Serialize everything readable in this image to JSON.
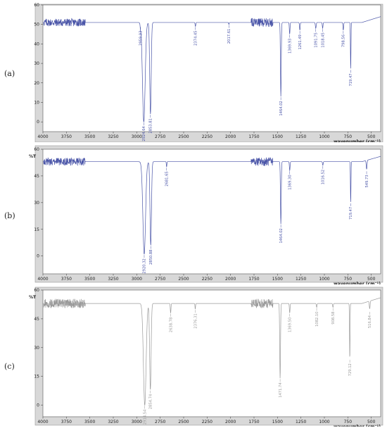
{
  "panel_labels": [
    "(a)",
    "(b)",
    "(c)"
  ],
  "chart_data": [
    {
      "type": "line",
      "panel": "(a)",
      "xlabel": "wavenumber (cm⁻¹)",
      "ylabel": "",
      "xlim": [
        4000,
        400
      ],
      "ylim": [
        -5,
        60
      ],
      "x_ticks": [
        4000,
        3750,
        3500,
        3250,
        3000,
        2750,
        2500,
        2250,
        2000,
        1750,
        1500,
        1250,
        1000,
        750,
        500
      ],
      "y_ticks": [
        0,
        10,
        20,
        30,
        40,
        50,
        60
      ],
      "grid": false,
      "color": "#4a55a8",
      "baseline": 51,
      "noise_regions": [
        [
          3990,
          3550,
          2.0
        ],
        [
          1780,
          1550,
          2.2
        ]
      ],
      "peaks": [
        {
          "x": 2924.64,
          "y": 0,
          "w": 40,
          "label": "2924.64"
        },
        {
          "x": 2853.81,
          "y": 4,
          "w": 22,
          "label": "2853.81"
        },
        {
          "x": 2959.93,
          "y": 49,
          "w": 10,
          "label": "2959.93"
        },
        {
          "x": 2374.45,
          "y": 49,
          "w": 10,
          "label": "2374.45"
        },
        {
          "x": 2017.61,
          "y": 50,
          "w": 8,
          "label": "2017.61"
        },
        {
          "x": 1464.02,
          "y": 13,
          "w": 12,
          "label": "1464.02"
        },
        {
          "x": 1369.93,
          "y": 45,
          "w": 10,
          "label": "1369.93"
        },
        {
          "x": 1261.49,
          "y": 47,
          "w": 10,
          "label": "1261.49"
        },
        {
          "x": 1091.75,
          "y": 48,
          "w": 12,
          "label": "1091.75"
        },
        {
          "x": 1018.45,
          "y": 48,
          "w": 10,
          "label": "1018.45"
        },
        {
          "x": 798.56,
          "y": 47,
          "w": 10,
          "label": "798.56"
        },
        {
          "x": 719.47,
          "y": 27,
          "w": 8,
          "label": "719.47"
        }
      ]
    },
    {
      "type": "line",
      "panel": "(b)",
      "xlabel": "wavenumber (cm⁻¹)",
      "ylabel": "%T",
      "xlim": [
        4000,
        400
      ],
      "ylim": [
        -10,
        60
      ],
      "x_ticks": [
        4000,
        3750,
        3500,
        3250,
        3000,
        2750,
        2500,
        2250,
        2000,
        1750,
        1500,
        1250,
        1000,
        750,
        500
      ],
      "y_ticks": [
        0,
        15,
        30,
        45,
        60
      ],
      "grid": false,
      "color": "#4a55a8",
      "baseline": 53,
      "noise_regions": [
        [
          3990,
          3550,
          2.2
        ],
        [
          1780,
          1550,
          2.4
        ]
      ],
      "peaks": [
        {
          "x": 2920.32,
          "y": 1,
          "w": 40,
          "label": "2920.32"
        },
        {
          "x": 2850.88,
          "y": 6,
          "w": 22,
          "label": "2850.88"
        },
        {
          "x": 2681.65,
          "y": 50,
          "w": 8,
          "label": "2681.65"
        },
        {
          "x": 1464.02,
          "y": 18,
          "w": 12,
          "label": "1464.02"
        },
        {
          "x": 1369.3,
          "y": 48,
          "w": 10,
          "label": "1369.30"
        },
        {
          "x": 1016.52,
          "y": 51,
          "w": 10,
          "label": "1016.52"
        },
        {
          "x": 719.47,
          "y": 30,
          "w": 8,
          "label": "719.47"
        },
        {
          "x": 549.73,
          "y": 48,
          "w": 12,
          "label": "549.73"
        }
      ]
    },
    {
      "type": "line",
      "panel": "(c)",
      "xlabel": "wavenumber (cm⁻¹)",
      "ylabel": "%T",
      "xlim": [
        4000,
        400
      ],
      "ylim": [
        -6,
        60
      ],
      "x_ticks": [
        4000,
        3750,
        3500,
        3250,
        3000,
        2750,
        2500,
        2250,
        2000,
        1750,
        1500,
        1250,
        1000,
        750,
        500
      ],
      "y_ticks": [
        0,
        15,
        30,
        45,
        60
      ],
      "grid": false,
      "color": "#9a9a9a",
      "baseline": 53,
      "noise_regions": [
        [
          3990,
          3550,
          2.4
        ],
        [
          1780,
          1550,
          2.4
        ]
      ],
      "peaks": [
        {
          "x": 2914.54,
          "y": 0,
          "w": 40,
          "label": "2914.54"
        },
        {
          "x": 2854.74,
          "y": 8,
          "w": 22,
          "label": "2854.74"
        },
        {
          "x": 2638.78,
          "y": 48,
          "w": 10,
          "label": "2638.78"
        },
        {
          "x": 2376.31,
          "y": 50,
          "w": 8,
          "label": "2376.31"
        },
        {
          "x": 1471.74,
          "y": 14,
          "w": 12,
          "label": "1471.74"
        },
        {
          "x": 1369.5,
          "y": 48,
          "w": 10,
          "label": "1369.50"
        },
        {
          "x": 1082.1,
          "y": 51,
          "w": 10,
          "label": "1082.10"
        },
        {
          "x": 908.58,
          "y": 51,
          "w": 10,
          "label": "908.58"
        },
        {
          "x": 729.12,
          "y": 24,
          "w": 8,
          "label": "729.12"
        },
        {
          "x": 516.84,
          "y": 49,
          "w": 12,
          "label": "516.84"
        }
      ]
    }
  ]
}
